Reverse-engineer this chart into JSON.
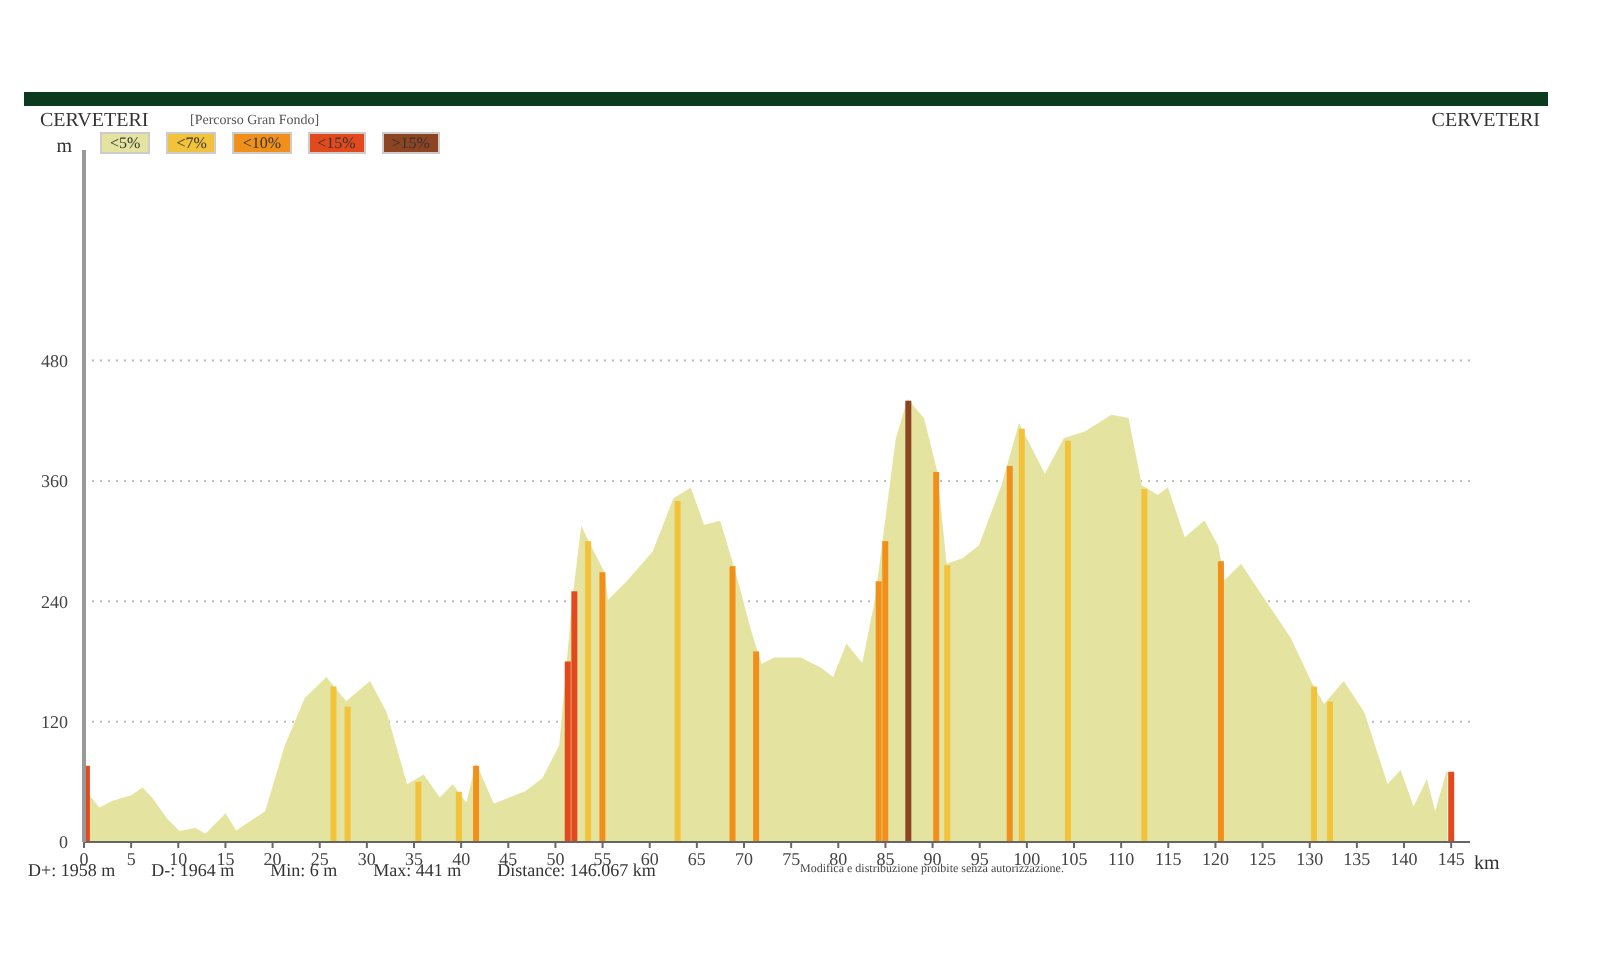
{
  "chart_data": {
    "type": "area",
    "title": "CERVETERI",
    "subtitle": "[Percorso Gran Fondo]",
    "xlabel": "km",
    "ylabel": "m",
    "annotations": [
      "CERVETERI",
      "D+: 1958 m",
      "D-: 1964 m",
      "Min: 6 m",
      "Max: 441 m",
      "Distance: 146.067 km",
      "Modifica e distribuzione proibite senza autorizzazione."
    ],
    "xlim": [
      0,
      147
    ],
    "xticks": [
      0,
      5,
      10,
      15,
      20,
      25,
      30,
      35,
      40,
      45,
      50,
      55,
      60,
      65,
      70,
      75,
      80,
      85,
      90,
      95,
      100,
      105,
      110,
      115,
      120,
      125,
      130,
      135,
      140,
      145
    ],
    "ylim": [
      0,
      690
    ],
    "yticks": [
      0,
      120,
      240,
      360,
      480
    ],
    "grid": "y",
    "legend": "top left",
    "series": [
      {
        "name": "<5%",
        "color": "#e4e4a0",
        "x": [
          0,
          0.5,
          1.6,
          3,
          5.1,
          6.2,
          7.2,
          8.7,
          10.1,
          11.8,
          12.9,
          15,
          16.1,
          19.3,
          21.4,
          23.5,
          25.7,
          27.8,
          30.3,
          32,
          34.2,
          36,
          37.7,
          39.1,
          40.6,
          41.6,
          43.4,
          46.9,
          48.7,
          50.5,
          51.9,
          52.8,
          54,
          55.1,
          55.5,
          57.6,
          60.4,
          62.6,
          64.3,
          65.7,
          67.4,
          69,
          70.7,
          71.8,
          73.2,
          76,
          78.1,
          79.5,
          80.9,
          82.6,
          84,
          86.2,
          87.4,
          89,
          90.4,
          91.4,
          93.2,
          95,
          97.4,
          99.2,
          101.9,
          104,
          106.1,
          109,
          110.7,
          112.1,
          113.9,
          114.9,
          116.7,
          118.8,
          120.2,
          120.9,
          122.7,
          125.1,
          127.9,
          130.1,
          131.5,
          133.6,
          135.7,
          138.2,
          139.6,
          141,
          142.4,
          143.3,
          144.6
        ],
        "values": [
          76,
          46,
          33,
          40,
          46,
          53,
          43,
          23,
          10,
          13,
          7,
          27,
          10,
          30,
          96,
          143,
          163,
          139,
          159,
          129,
          56,
          66,
          43,
          56,
          37,
          76,
          37,
          50,
          63,
          96,
          242,
          312,
          289,
          269,
          239,
          259,
          289,
          342,
          352,
          315,
          319,
          269,
          209,
          176,
          183,
          183,
          173,
          163,
          196,
          176,
          242,
          402,
          440,
          422,
          369,
          276,
          282,
          295,
          355,
          415,
          365,
          402,
          408,
          425,
          422,
          355,
          345,
          352,
          302,
          319,
          295,
          259,
          276,
          242,
          203,
          159,
          136,
          159,
          129,
          56,
          70,
          33,
          60,
          27,
          70
        ]
      },
      {
        "name": "<7%",
        "type": "bar",
        "color": "#f2c23a",
        "x": [
          26.5,
          28,
          35.5,
          39.8,
          53.5,
          63,
          91.6,
          99.5,
          104.4,
          112.5,
          130.5,
          132.2
        ],
        "values": [
          155,
          135,
          60,
          50,
          300,
          340,
          276,
          412,
          400,
          352,
          155,
          140
        ]
      },
      {
        "name": "<10%",
        "type": "bar",
        "color": "#f0901a",
        "x": [
          41.6,
          55,
          68.8,
          71.3,
          84.3,
          85,
          90.4,
          98.2,
          120.6
        ],
        "values": [
          76,
          269,
          275,
          190,
          260,
          300,
          369,
          375,
          280
        ]
      },
      {
        "name": "<15%",
        "type": "bar",
        "color": "#e24a1e",
        "x": [
          0.3,
          51.3,
          52,
          145
        ],
        "values": [
          76,
          180,
          250,
          70
        ]
      },
      {
        "name": ">15%",
        "type": "bar",
        "color": "#8c4422",
        "x": [
          87.4
        ],
        "values": [
          440
        ]
      }
    ]
  }
}
